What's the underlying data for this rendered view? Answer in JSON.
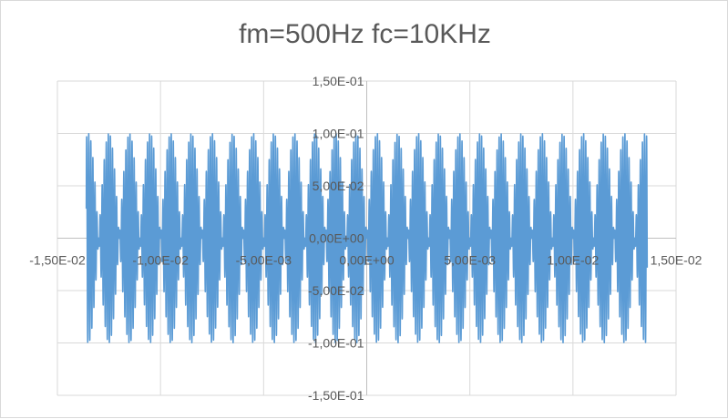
{
  "chart_data": {
    "type": "line",
    "title": "fm=500Hz fc=10KHz",
    "xlabel": "",
    "ylabel": "",
    "xlim": [
      -0.015,
      0.015
    ],
    "ylim": [
      -0.15,
      0.15
    ],
    "x_ticks": [
      -0.015,
      -0.01,
      -0.005,
      0,
      0.005,
      0.01,
      0.015
    ],
    "x_tick_labels": [
      "-1,50E-02",
      "-1,00E-02",
      "-5,00E-03",
      "0,00E+00",
      "5,00E-03",
      "1,00E-02",
      "1,50E-02"
    ],
    "y_ticks": [
      0.15,
      0.1,
      0.05,
      0,
      -0.05,
      -0.1,
      -0.15
    ],
    "y_tick_labels": [
      "1,50E-01",
      "1,00E-01",
      "5,00E-02",
      "0,00E+00",
      "-5,00E-02",
      "-1,00E-01",
      "-1,50E-01"
    ],
    "grid": true,
    "legend": "none",
    "series_color": "#5b9bd5",
    "x_range_of_data": [
      -0.0136,
      0.0136
    ],
    "modulating_frequency_hz": 500,
    "carrier_frequency_hz": 10000,
    "peak_amplitude": 0.1
  }
}
